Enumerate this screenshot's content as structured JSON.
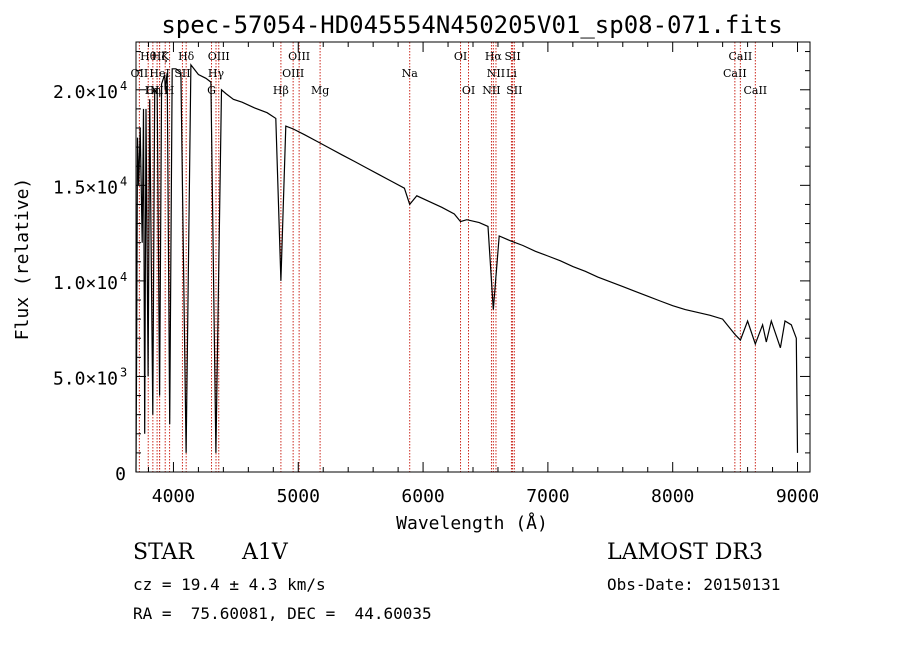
{
  "chart_data": {
    "type": "line",
    "title": "spec-57054-HD045554N450205V01_sp08-071.fits",
    "xlabel": "Wavelength (Å)",
    "ylabel": "Flux (relative)",
    "xlim": [
      3700,
      9100
    ],
    "ylim": [
      0,
      22500
    ],
    "x_ticks": [
      {
        "value": 4000,
        "label": "4000"
      },
      {
        "value": 5000,
        "label": "5000"
      },
      {
        "value": 6000,
        "label": "6000"
      },
      {
        "value": 7000,
        "label": "7000"
      },
      {
        "value": 8000,
        "label": "8000"
      },
      {
        "value": 9000,
        "label": "9000"
      }
    ],
    "y_ticks": [
      {
        "value": 0,
        "mantissa": "0",
        "exponent": ""
      },
      {
        "value": 5000,
        "mantissa": "5.0×10",
        "exponent": "3"
      },
      {
        "value": 10000,
        "mantissa": "1.0×10",
        "exponent": "4"
      },
      {
        "value": 15000,
        "mantissa": "1.5×10",
        "exponent": "4"
      },
      {
        "value": 20000,
        "mantissa": "2.0×10",
        "exponent": "4"
      }
    ],
    "series": [
      {
        "name": "spectrum",
        "color": "#000000",
        "points": [
          [
            3700,
            0
          ],
          [
            3705,
            6000
          ],
          [
            3712,
            17500
          ],
          [
            3722,
            15000
          ],
          [
            3734,
            18000
          ],
          [
            3750,
            12000
          ],
          [
            3760,
            19000
          ],
          [
            3770,
            2000
          ],
          [
            3780,
            19000
          ],
          [
            3797,
            5000
          ],
          [
            3810,
            19500
          ],
          [
            3835,
            3000
          ],
          [
            3850,
            20000
          ],
          [
            3870,
            19800
          ],
          [
            3889,
            4000
          ],
          [
            3905,
            20300
          ],
          [
            3930,
            20800
          ],
          [
            3934,
            20000
          ],
          [
            3950,
            20900
          ],
          [
            3970,
            2500
          ],
          [
            3990,
            21100
          ],
          [
            4020,
            21100
          ],
          [
            4060,
            20900
          ],
          [
            4101,
            1000
          ],
          [
            4140,
            21300
          ],
          [
            4200,
            20800
          ],
          [
            4260,
            20600
          ],
          [
            4300,
            20400
          ],
          [
            4340,
            1000
          ],
          [
            4385,
            20000
          ],
          [
            4420,
            19800
          ],
          [
            4480,
            19500
          ],
          [
            4550,
            19350
          ],
          [
            4650,
            19050
          ],
          [
            4750,
            18800
          ],
          [
            4820,
            18500
          ],
          [
            4861,
            10000
          ],
          [
            4900,
            18100
          ],
          [
            4960,
            17950
          ],
          [
            5050,
            17650
          ],
          [
            5150,
            17300
          ],
          [
            5250,
            16950
          ],
          [
            5350,
            16600
          ],
          [
            5450,
            16250
          ],
          [
            5550,
            15900
          ],
          [
            5650,
            15550
          ],
          [
            5750,
            15200
          ],
          [
            5850,
            14850
          ],
          [
            5893,
            14000
          ],
          [
            5950,
            14450
          ],
          [
            6050,
            14150
          ],
          [
            6150,
            13850
          ],
          [
            6250,
            13500
          ],
          [
            6300,
            13100
          ],
          [
            6350,
            13200
          ],
          [
            6450,
            13050
          ],
          [
            6520,
            12850
          ],
          [
            6563,
            8500
          ],
          [
            6610,
            12350
          ],
          [
            6700,
            12100
          ],
          [
            6800,
            11850
          ],
          [
            6900,
            11550
          ],
          [
            7000,
            11300
          ],
          [
            7100,
            11050
          ],
          [
            7200,
            10750
          ],
          [
            7300,
            10500
          ],
          [
            7400,
            10200
          ],
          [
            7500,
            9950
          ],
          [
            7600,
            9700
          ],
          [
            7700,
            9450
          ],
          [
            7800,
            9200
          ],
          [
            7900,
            8950
          ],
          [
            8000,
            8700
          ],
          [
            8100,
            8500
          ],
          [
            8200,
            8350
          ],
          [
            8300,
            8200
          ],
          [
            8400,
            8000
          ],
          [
            8498,
            7200
          ],
          [
            8542,
            6900
          ],
          [
            8600,
            7900
          ],
          [
            8662,
            6700
          ],
          [
            8720,
            7700
          ],
          [
            8750,
            6800
          ],
          [
            8790,
            7900
          ],
          [
            8863,
            6500
          ],
          [
            8900,
            7900
          ],
          [
            8950,
            7700
          ],
          [
            8990,
            7000
          ],
          [
            9000,
            1000
          ]
        ]
      }
    ],
    "emission_lines": [
      {
        "label": "OII",
        "wavelength": 3727,
        "row": 2
      },
      {
        "label": "Hθ",
        "wavelength": 3798,
        "row": 1
      },
      {
        "label": "Hη",
        "wavelength": 3835,
        "row": 3
      },
      {
        "label": "OIII",
        "wavelength": 3869,
        "row": 3
      },
      {
        "label": "HeI",
        "wavelength": 3889,
        "row": 2
      },
      {
        "label": "Hζ",
        "wavelength": 3889,
        "row": 1
      },
      {
        "label": "K",
        "wavelength": 3934,
        "row": 1
      },
      {
        "label": "H",
        "wavelength": 3969,
        "row": 3
      },
      {
        "label": "SII",
        "wavelength": 4072,
        "row": 2
      },
      {
        "label": "Hδ",
        "wavelength": 4102,
        "row": 1
      },
      {
        "label": "G",
        "wavelength": 4305,
        "row": 3
      },
      {
        "label": "Hγ",
        "wavelength": 4341,
        "row": 2
      },
      {
        "label": "OIII",
        "wavelength": 4363,
        "row": 1
      },
      {
        "label": "Hβ",
        "wavelength": 4861,
        "row": 3
      },
      {
        "label": "OIII",
        "wavelength": 4959,
        "row": 2
      },
      {
        "label": "OIII",
        "wavelength": 5007,
        "row": 1
      },
      {
        "label": "Mg",
        "wavelength": 5175,
        "row": 3
      },
      {
        "label": "Na",
        "wavelength": 5893,
        "row": 2
      },
      {
        "label": "OI",
        "wavelength": 6300,
        "row": 1
      },
      {
        "label": "OI",
        "wavelength": 6364,
        "row": 3
      },
      {
        "label": "Hα",
        "wavelength": 6563,
        "row": 1
      },
      {
        "label": "NII",
        "wavelength": 6584,
        "row": 2
      },
      {
        "label": "NII",
        "wavelength": 6548,
        "row": 3
      },
      {
        "label": "SII",
        "wavelength": 6717,
        "row": 1
      },
      {
        "label": "SII",
        "wavelength": 6731,
        "row": 3
      },
      {
        "label": "Li",
        "wavelength": 6708,
        "row": 2
      },
      {
        "label": "CaII",
        "wavelength": 8542,
        "row": 1
      },
      {
        "label": "CaII",
        "wavelength": 8498,
        "row": 2
      },
      {
        "label": "CaII",
        "wavelength": 8662,
        "row": 3
      }
    ],
    "colors": {
      "axis": "#000000",
      "line": "#000000",
      "marker": "#cc2a1f"
    }
  },
  "info": {
    "object_class": "STAR",
    "subclass": "A1V",
    "survey": "LAMOST DR3",
    "redshift": "cz = 19.4 ± 4.3 km/s",
    "obs_date": "Obs-Date: 20150131",
    "coords": "RA =  75.60081, DEC =  44.60035"
  }
}
